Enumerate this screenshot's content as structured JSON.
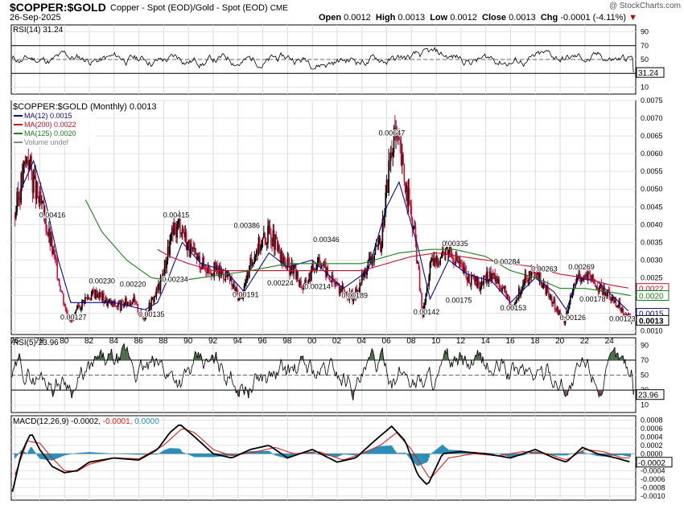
{
  "header": {
    "symbol": "$COPPER:$GOLD",
    "description": "Copper - Spot (EOD)/Gold - Spot (EOD)",
    "exchange": "CME",
    "date": "26-Sep-2025",
    "watermark": "@ StockCharts.com",
    "open_label": "Open",
    "open": "0.0012",
    "high_label": "High",
    "high": "0.0013",
    "low_label": "Low",
    "low": "0.0012",
    "close_label": "Close",
    "close": "0.0013",
    "chg_label": "Chg",
    "chg": "-0.0001 (-4.11%)"
  },
  "colors": {
    "price": "#000000",
    "ma12": "#0a0a8c",
    "ma200": "#c8102e",
    "ma125": "#1e7d1e",
    "overbought": "#4a6b4a",
    "oversold": "#7b4b4b",
    "signal": "#e0201b",
    "histogram": "#2a8fb8"
  },
  "chart_data": [
    {
      "type": "line",
      "panel": "RSI(14)",
      "title": "RSI(14) 31.24",
      "current": 31.24,
      "levels": [
        70,
        50,
        30
      ],
      "ylim": [
        0,
        100
      ],
      "yticks": [
        "90",
        "70",
        "50",
        "30",
        "10"
      ],
      "marker_label": "31.24"
    },
    {
      "type": "line",
      "panel": "price",
      "title": "$COPPER:$GOLD (Monthly) 0.0013",
      "scale": "linear",
      "ylim": [
        0.0009,
        0.0075
      ],
      "yticks": [
        "0.0075",
        "0.0070",
        "0.0065",
        "0.0060",
        "0.0055",
        "0.0050",
        "0.0045",
        "0.0040",
        "0.0035",
        "0.0030",
        "0.0025",
        "0.0020",
        "0.0015",
        "0.0010"
      ],
      "xticks": [
        "76",
        "78",
        "80",
        "82",
        "84",
        "86",
        "88",
        "90",
        "92",
        "94",
        "96",
        "98",
        "00",
        "02",
        "04",
        "06",
        "08",
        "10",
        "12",
        "14",
        "16",
        "18",
        "20",
        "22",
        "24"
      ],
      "xlim": [
        1975.7,
        2026.1
      ],
      "legend": [
        {
          "name": "MA(12) 0.0015",
          "color": "#0a0a8c"
        },
        {
          "name": "MA(200) 0.0022",
          "color": "#c8102e"
        },
        {
          "name": "MA(125) 0.0020",
          "color": "#1e7d1e"
        },
        {
          "name": "Volume undef",
          "color": "#888888"
        }
      ],
      "series": [
        {
          "name": "$COPPER:$GOLD",
          "x": [
            1976.0,
            1977.0,
            1977.6,
            1978.4,
            1979.2,
            1980.1,
            1980.6,
            1981.6,
            1982.6,
            1983.5,
            1984.5,
            1985.5,
            1986.3,
            1987.0,
            1987.7,
            1988.6,
            1989.3,
            1990.2,
            1991.5,
            1993.0,
            1994.2,
            1995.4,
            1996.6,
            1997.5,
            1998.5,
            1999.3,
            2000.5,
            2001.4,
            2002.5,
            2003.3,
            2004.5,
            2005.5,
            2006.3,
            2006.8,
            2007.5,
            2008.3,
            2008.9,
            2009.5,
            2010.5,
            2011.1,
            2012.5,
            2013.5,
            2014.5,
            2015.5,
            2016.1,
            2017.0,
            2018.1,
            2019.3,
            2020.3,
            2021.0,
            2021.5,
            2022.4,
            2023.5,
            2024.3,
            2025.1,
            2025.7
          ],
          "y": [
            0.0043,
            0.006,
            0.005,
            0.0042,
            0.003,
            0.0016,
            0.0013,
            0.0019,
            0.0021,
            0.0018,
            0.0017,
            0.0019,
            0.00135,
            0.0018,
            0.0023,
            0.0036,
            0.0041,
            0.0032,
            0.0028,
            0.0026,
            0.0019,
            0.0033,
            0.0038,
            0.003,
            0.0027,
            0.0022,
            0.0031,
            0.0025,
            0.0021,
            0.0019,
            0.0029,
            0.0034,
            0.006,
            0.00647,
            0.0052,
            0.0036,
            0.00142,
            0.0028,
            0.0032,
            0.00335,
            0.0025,
            0.0023,
            0.0026,
            0.0022,
            0.00153,
            0.0024,
            0.0026,
            0.0019,
            0.00126,
            0.0021,
            0.0026,
            0.0025,
            0.0021,
            0.0019,
            0.0016,
            0.0013
          ]
        },
        {
          "name": "MA(12)",
          "x": [
            1976.5,
            1977.5,
            1978.5,
            1979.5,
            1980.5,
            1982.0,
            1984.0,
            1986.5,
            1987.5,
            1988.5,
            1989.5,
            1991.0,
            1993.0,
            1994.5,
            1996.5,
            1998.0,
            2000.0,
            2002.5,
            2004.5,
            2006.0,
            2007.0,
            2008.5,
            2009.5,
            2011.0,
            2012.5,
            2014.5,
            2016.0,
            2018.0,
            2019.5,
            2020.5,
            2021.5,
            2023.0,
            2024.5,
            2025.7
          ],
          "y": [
            0.005,
            0.0058,
            0.0046,
            0.003,
            0.0018,
            0.0018,
            0.0018,
            0.0016,
            0.0018,
            0.0026,
            0.0035,
            0.0029,
            0.0027,
            0.0021,
            0.0032,
            0.0028,
            0.003,
            0.0022,
            0.0027,
            0.0045,
            0.0052,
            0.0034,
            0.0019,
            0.003,
            0.0026,
            0.0024,
            0.0018,
            0.0025,
            0.0021,
            0.0016,
            0.0025,
            0.0024,
            0.0019,
            0.0015
          ]
        },
        {
          "name": "MA(200)",
          "x": [
            1987.5,
            1988.5,
            1990.0,
            1992.0,
            1994.0,
            1996.0,
            1998.0,
            2000.0,
            2002.0,
            2004.0,
            2006.0,
            2008.0,
            2010.0,
            2012.0,
            2014.0,
            2016.0,
            2018.0,
            2020.0,
            2022.0,
            2024.0,
            2025.7
          ],
          "y": [
            0.0033,
            0.0031,
            0.0029,
            0.0027,
            0.0027,
            0.0027,
            0.0027,
            0.0027,
            0.0027,
            0.0027,
            0.0029,
            0.0031,
            0.0032,
            0.0031,
            0.003,
            0.0029,
            0.0028,
            0.0026,
            0.0025,
            0.0023,
            0.0022
          ]
        },
        {
          "name": "MA(125)",
          "x": [
            1981.7,
            1983.0,
            1985.0,
            1987.0,
            1989.0,
            1991.0,
            1993.0,
            1995.0,
            1998.0,
            2001.0,
            2004.0,
            2007.0,
            2009.5,
            2011.5,
            2014.0,
            2016.0,
            2018.0,
            2020.0,
            2022.0,
            2024.0,
            2025.7
          ],
          "y": [
            0.0047,
            0.0038,
            0.003,
            0.0025,
            0.0024,
            0.0025,
            0.0026,
            0.0027,
            0.0029,
            0.0029,
            0.0029,
            0.0032,
            0.0033,
            0.0033,
            0.0031,
            0.0027,
            0.0025,
            0.0022,
            0.0022,
            0.0021,
            0.002
          ]
        }
      ],
      "annotations": [
        {
          "x": 1979.0,
          "y": 0.00416,
          "label": "0.00416"
        },
        {
          "x": 1983.0,
          "y": 0.0023,
          "label": "0.00230"
        },
        {
          "x": 1985.5,
          "y": 0.0022,
          "label": "0.00220"
        },
        {
          "x": 1989.0,
          "y": 0.00415,
          "label": "0.00415"
        },
        {
          "x": 1988.9,
          "y": 0.00234,
          "label": "0.00234"
        },
        {
          "x": 1994.7,
          "y": 0.00386,
          "label": "0.00386"
        },
        {
          "x": 1994.6,
          "y": 0.00191,
          "label": "0.00191"
        },
        {
          "x": 1997.4,
          "y": 0.00224,
          "label": "0.00224"
        },
        {
          "x": 2001.1,
          "y": 0.00346,
          "label": "0.00346"
        },
        {
          "x": 2000.4,
          "y": 0.00214,
          "label": "0.00214"
        },
        {
          "x": 2003.4,
          "y": 0.00189,
          "label": "0.00189"
        },
        {
          "x": 2006.4,
          "y": 0.00647,
          "label": "0.00647"
        },
        {
          "x": 2009.2,
          "y": 0.00142,
          "label": "0.00142"
        },
        {
          "x": 2011.5,
          "y": 0.00335,
          "label": "0.00335"
        },
        {
          "x": 2011.8,
          "y": 0.00175,
          "label": "0.00175"
        },
        {
          "x": 2015.7,
          "y": 0.00284,
          "label": "0.00284"
        },
        {
          "x": 2016.2,
          "y": 0.00153,
          "label": "0.00153"
        },
        {
          "x": 2018.7,
          "y": 0.00263,
          "label": "0.00263"
        },
        {
          "x": 2021.0,
          "y": 0.00126,
          "label": "0.00126"
        },
        {
          "x": 2021.7,
          "y": 0.00269,
          "label": "0.00269"
        },
        {
          "x": 2022.6,
          "y": 0.00178,
          "label": "0.00178"
        },
        {
          "x": 2025.0,
          "y": 0.00123,
          "label": "0.00123"
        },
        {
          "x": 1980.7,
          "y": 0.00127,
          "label": "0.00127"
        },
        {
          "x": 1987.0,
          "y": 0.00135,
          "label": "0.00135"
        }
      ],
      "right_markers": [
        {
          "value": "0.0022",
          "color": "#c8102e"
        },
        {
          "value": "0.0020",
          "color": "#1e7d1e"
        },
        {
          "value": "0.0015",
          "color": "#0a0a8c"
        },
        {
          "value": "0.0013",
          "color": "#000000"
        }
      ]
    },
    {
      "type": "line",
      "panel": "RSI(5)",
      "title": "RSI(5) 23.96",
      "current": 23.96,
      "levels": [
        70,
        50,
        30
      ],
      "ylim": [
        0,
        100
      ],
      "yticks": [
        "90",
        "70",
        "50",
        "30",
        "10"
      ],
      "marker_label": "23.96"
    },
    {
      "type": "line",
      "panel": "MACD",
      "title": "MACD(12,26,9)",
      "macd": "-0.0002",
      "signal": "-0.0001",
      "histogram": "0.0000",
      "ylim": [
        -0.0011,
        0.0009
      ],
      "yticks": [
        "0.0008",
        "0.0006",
        "0.0004",
        "0.0002",
        "0.0000",
        "-0.0002",
        "-0.0004",
        "-0.0006",
        "-0.0008",
        "-0.0010"
      ],
      "marker_label": "-0.0002",
      "series": [
        {
          "name": "MACD",
          "x": [
            1975.8,
            1976.5,
            1977.3,
            1978.0,
            1979.0,
            1980.0,
            1981.0,
            1982.0,
            1984.0,
            1986.0,
            1987.5,
            1988.5,
            1989.3,
            1990.5,
            1992.0,
            1993.5,
            1995.0,
            1996.5,
            1998.0,
            2000.0,
            2002.0,
            2003.5,
            2005.0,
            2006.4,
            2007.5,
            2008.5,
            2009.3,
            2010.5,
            2012.0,
            2014.0,
            2016.0,
            2018.0,
            2019.5,
            2020.5,
            2021.8,
            2023.0,
            2024.5,
            2025.7
          ],
          "y": [
            -0.0009,
            0.0,
            0.0005,
            0.0001,
            -0.0003,
            -0.00045,
            -0.0004,
            -0.0002,
            -0.0001,
            -0.00015,
            0.0001,
            0.0005,
            0.0007,
            0.0004,
            0.0,
            -0.0001,
            0.0001,
            0.0002,
            -0.0001,
            0.0001,
            -0.0002,
            -0.0001,
            0.0003,
            0.00065,
            0.0003,
            -0.0005,
            -0.00075,
            0.0,
            5e-05,
            0.0,
            -0.0001,
            0.0001,
            -0.0001,
            -0.0002,
            0.00015,
            0.0,
            -0.0001,
            -0.0002
          ]
        },
        {
          "name": "Signal",
          "x": [
            1976.0,
            1977.0,
            1978.0,
            1979.0,
            1980.0,
            1981.0,
            1982.0,
            1984.0,
            1986.0,
            1988.0,
            1989.5,
            1990.5,
            1992.0,
            1993.5,
            1995.5,
            1997.0,
            1998.5,
            2000.5,
            2002.5,
            2004.0,
            2005.5,
            2006.8,
            2008.0,
            2009.5,
            2011.0,
            2013.0,
            2015.0,
            2017.0,
            2019.0,
            2020.5,
            2022.0,
            2023.5,
            2025.0,
            2025.7
          ],
          "y": [
            -0.0005,
            0.0003,
            0.00025,
            -0.0001,
            -0.0004,
            -0.00042,
            -0.00025,
            -0.0001,
            -0.00012,
            0.0002,
            0.0006,
            0.0005,
            0.0001,
            -5e-05,
            5e-05,
            0.00015,
            0.0,
            5e-05,
            -0.00015,
            0.0,
            0.0002,
            0.0005,
            0.0001,
            -0.0006,
            -0.0001,
            0.0,
            -5e-05,
            5e-05,
            0.0,
            -0.00015,
            0.0001,
            5e-05,
            -0.0001,
            -0.0001
          ]
        }
      ]
    }
  ]
}
